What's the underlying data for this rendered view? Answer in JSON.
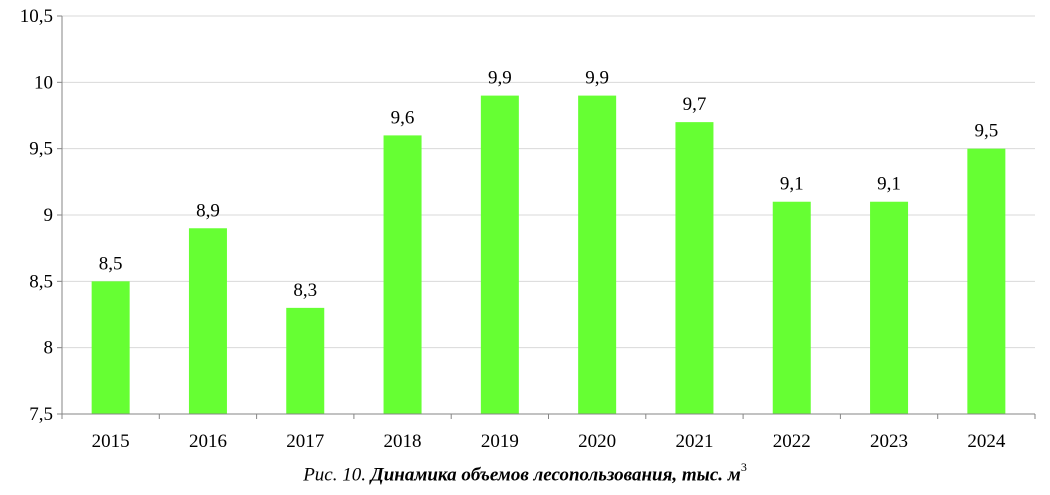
{
  "chart_data": {
    "type": "bar",
    "categories": [
      "2015",
      "2016",
      "2017",
      "2018",
      "2019",
      "2020",
      "2021",
      "2022",
      "2023",
      "2024"
    ],
    "values": [
      8.5,
      8.9,
      8.3,
      9.6,
      9.9,
      9.9,
      9.7,
      9.1,
      9.1,
      9.5
    ],
    "value_labels": [
      "8,5",
      "8,9",
      "8,3",
      "9,6",
      "9,9",
      "9,9",
      "9,7",
      "9,1",
      "9,1",
      "9,5"
    ],
    "ylim": [
      7.5,
      10.5
    ],
    "yticks": [
      7.5,
      8,
      8.5,
      9,
      9.5,
      10,
      10.5
    ],
    "ytick_labels": [
      "7,5",
      "8",
      "8,5",
      "9",
      "9,5",
      "10",
      "10,5"
    ],
    "grid": true,
    "bar_color": "#66ff33",
    "grid_color": "#d9d9d9",
    "axis_color": "#868686",
    "xlabel": "",
    "ylabel": ""
  },
  "caption": {
    "prefix": "Рис. 10.",
    "title": "Динамика объемов лесопользования, тыс. м",
    "superscript": "3"
  }
}
